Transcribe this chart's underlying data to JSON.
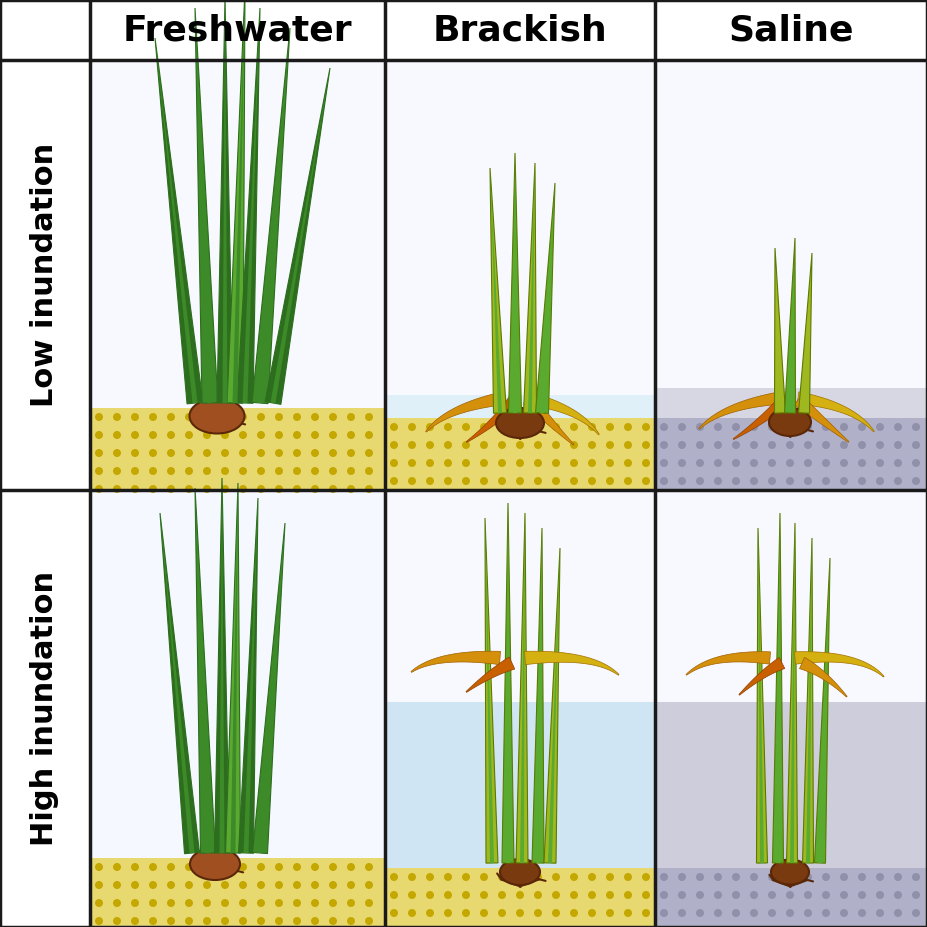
{
  "col_labels": [
    "Freshwater",
    "Brackish",
    "Saline"
  ],
  "row_labels": [
    "Low inundation",
    "High inundation"
  ],
  "col_label_fontsize": 26,
  "row_label_fontsize": 22,
  "bg_color": "#ffffff",
  "grid_color": "#1a1a1a",
  "grid_lw": 2.5,
  "plant_green_dark": "#2d6e1e",
  "plant_green_mid": "#3d8a28",
  "plant_green_light": "#5aaa30",
  "plant_yellow_green": "#a0b820",
  "plant_yellow": "#d4b010",
  "plant_gold": "#d4900a",
  "plant_orange": "#c86000",
  "rhizome_brown": "#7a3a10",
  "rhizome_light": "#a05020",
  "root_brown": "#5a2808",
  "soil_yellow": "#e8d870",
  "soil_dot_yellow": "#c4a800",
  "soil_grey": "#b0b0c8",
  "soil_dot_grey": "#9090aa",
  "water_blue_light": "#daeef8",
  "water_blue": "#c0ddf0",
  "water_grey_light": "#d0d0e0",
  "water_grey": "#b8b8cc"
}
